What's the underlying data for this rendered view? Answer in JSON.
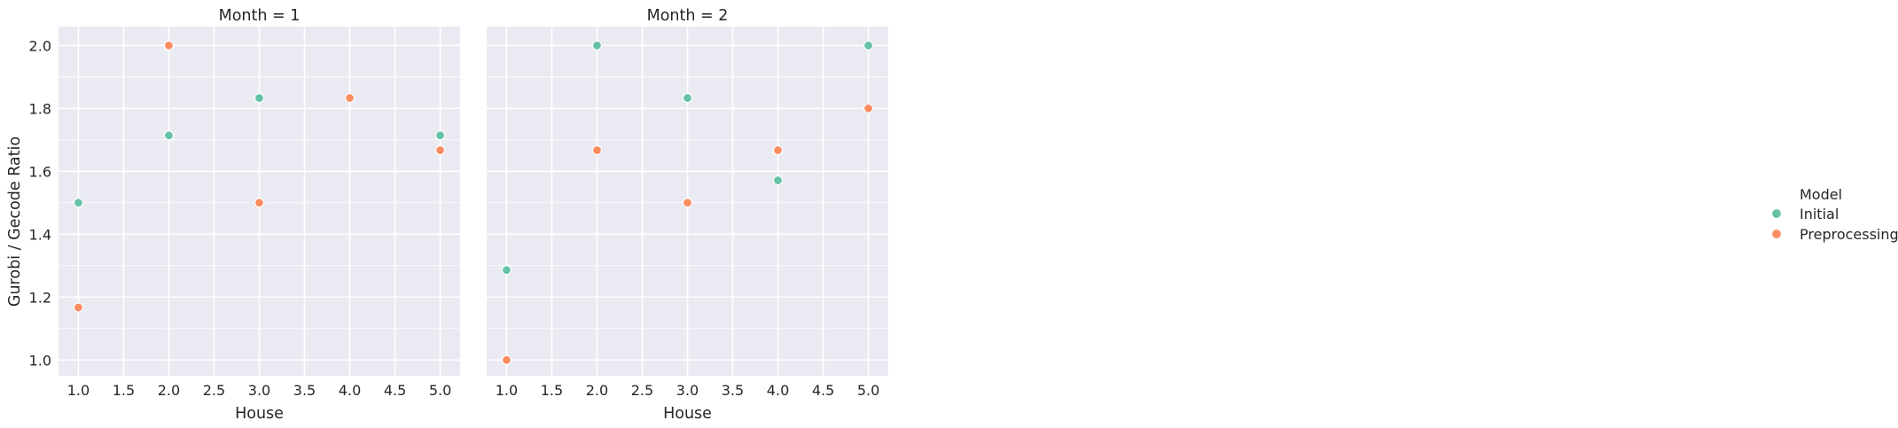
{
  "chart_data": {
    "type": "scatter",
    "ylabel": "Gurobi / Gecode Ratio",
    "xticks": [
      "1.0",
      "1.5",
      "2.0",
      "2.5",
      "3.0",
      "3.5",
      "4.0",
      "4.5",
      "5.0"
    ],
    "yticks": [
      "1.0",
      "1.2",
      "1.4",
      "1.6",
      "1.8",
      "2.0"
    ],
    "xlim": [
      0.78,
      5.22
    ],
    "ylim": [
      0.95,
      2.06
    ],
    "grid": true,
    "legend": {
      "title": "Model",
      "placement": "right",
      "entries": [
        {
          "label": "Initial",
          "color": "#66c2a5"
        },
        {
          "label": "Preprocessing",
          "color": "#fc8d62"
        }
      ]
    },
    "panels": [
      {
        "title": "Month = 1",
        "xlabel": "House",
        "series": [
          {
            "name": "Initial",
            "color": "#66c2a5",
            "points": [
              [
                1,
                1.5
              ],
              [
                2,
                1.714
              ],
              [
                3,
                1.833
              ],
              [
                5,
                1.714
              ]
            ]
          },
          {
            "name": "Preprocessing",
            "color": "#fc8d62",
            "points": [
              [
                1,
                1.167
              ],
              [
                2,
                2.0
              ],
              [
                3,
                1.5
              ],
              [
                4,
                1.833
              ],
              [
                5,
                1.667
              ]
            ]
          }
        ]
      },
      {
        "title": "Month = 2",
        "xlabel": "House",
        "series": [
          {
            "name": "Initial",
            "color": "#66c2a5",
            "points": [
              [
                1,
                1.286
              ],
              [
                2,
                2.0
              ],
              [
                3,
                1.833
              ],
              [
                4,
                1.571
              ],
              [
                5,
                2.0
              ]
            ]
          },
          {
            "name": "Preprocessing",
            "color": "#fc8d62",
            "points": [
              [
                1,
                1.0
              ],
              [
                2,
                1.667
              ],
              [
                3,
                1.5
              ],
              [
                4,
                1.667
              ],
              [
                5,
                1.8
              ]
            ]
          }
        ]
      }
    ]
  }
}
